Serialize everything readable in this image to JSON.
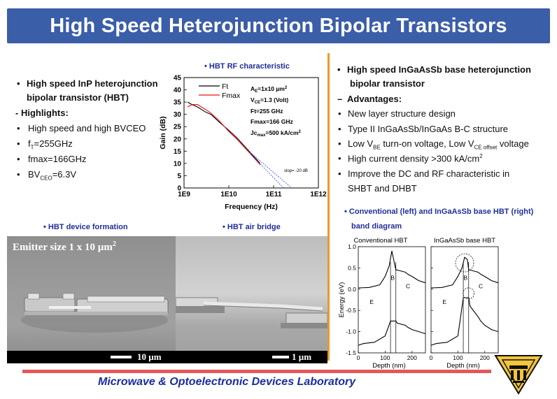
{
  "title": "High Speed Heterojunction Bipolar Transistors",
  "footer": "Microwave & Optoelectronic Devices Laboratory",
  "left_text": {
    "heading_line1": "High speed InP heterojunction",
    "heading_line2": "bipolar transistor (HBT)",
    "highlights_label": "- Highlights:",
    "items": [
      {
        "pre": "High speed and high BVCEO",
        "sub": "",
        "post": ""
      },
      {
        "pre": "f",
        "sub": "T",
        "post": "=255GHz"
      },
      {
        "pre": "fmax=166GHz",
        "sub": "",
        "post": ""
      },
      {
        "pre": "BV",
        "sub": "CEO",
        "post": "=6.3V"
      }
    ]
  },
  "right_text": {
    "heading_line1": "High speed InGaAsSb base heterojunction",
    "heading_line2": "bipolar transistor",
    "advantages_label": "Advantages:",
    "item1": "New layer structure design",
    "item2": "Type II InGaAsSb/InGaAs B-C structure",
    "item3_a": "Low V",
    "item3_sub1": "BE",
    "item3_b": " turn-on voltage, Low V",
    "item3_sub2": "CE offset",
    "item3_c": " voltage",
    "item4_a": "High current density >300 kA/cm",
    "item4_sup": "2",
    "item5_line1": "Improve the DC and RF characteristic in",
    "item5_line2": "SHBT and DHBT"
  },
  "captions": {
    "rf": "• HBT RF characteristic",
    "device": "• HBT device formation",
    "airbridge": "• HBT air bridge",
    "band_line1": "• Conventional (left) and InGaAsSb base HBT (right)",
    "band_line2": "band diagram"
  },
  "sem": {
    "emitter_label": "Emitter size 1 x 10 µm",
    "emitter_sup": "2",
    "scale1": "10 µm",
    "scale2": "1 µm"
  },
  "rf_chart": {
    "chart_data": {
      "type": "line",
      "xscale": "log",
      "xlim": [
        1000000000.0,
        1000000000000.0
      ],
      "ylim": [
        0,
        45
      ],
      "xlabel": "Frequency (Hz)",
      "ylabel": "Gain (dB)",
      "x_ticks": [
        "1E9",
        "1E10",
        "1E11",
        "1E12"
      ],
      "y_ticks": [
        "0",
        "5",
        "10",
        "15",
        "20",
        "25",
        "30",
        "35",
        "40",
        "45"
      ],
      "legend": [
        "Ft",
        "Fmax"
      ],
      "series": [
        {
          "name": "Ft",
          "color": "#000000",
          "x": [
            1200000000.0,
            1500000000.0,
            2000000000.0,
            3000000000.0,
            4000000000.0,
            6000000000.0,
            8000000000.0,
            10000000000.0,
            15000000000.0,
            20000000000.0,
            30000000000.0,
            40000000000.0,
            50000000000.0
          ],
          "y": [
            35,
            34,
            33,
            31,
            30,
            27,
            25,
            23.5,
            20.5,
            18,
            14.5,
            12,
            10
          ]
        },
        {
          "name": "Fmax",
          "color": "#ee1111",
          "x": [
            1200000000.0,
            1500000000.0,
            2000000000.0,
            3000000000.0,
            4000000000.0,
            6000000000.0,
            8000000000.0,
            10000000000.0,
            15000000000.0,
            20000000000.0,
            30000000000.0,
            40000000000.0,
            50000000000.0
          ],
          "y": [
            33,
            34,
            34,
            32,
            30.5,
            27.5,
            25,
            23,
            20,
            17.5,
            14,
            11.5,
            9.5
          ]
        },
        {
          "name": "Ft extrapolation",
          "color": "#3344dd",
          "x": [
            30000000000.0,
            255000000000.0
          ],
          "y": [
            14.5,
            0
          ]
        },
        {
          "name": "Fmax extrapolation",
          "color": "#3344dd",
          "x": [
            30000000000.0,
            166000000000.0
          ],
          "y": [
            14,
            0
          ]
        }
      ],
      "annotations": {
        "ae_a": "A",
        "ae_sub": "E",
        "ae_b": "=1x10 µm",
        "ae_sup": "2",
        "vce_a": "V",
        "vce_sub": "CE",
        "vce_b": "=1.3 (Volt)",
        "ft": "Ft=255 GHz",
        "fmax": "Fmax=166 GHz",
        "jc_a": "Jc",
        "jc_sub": "max",
        "jc_b": "=500 kA/cm",
        "jc_sup": "2",
        "slope": "slop= -20 dB"
      }
    }
  },
  "band_chart": {
    "chart_data": [
      {
        "type": "line",
        "title": "Conventional HBT",
        "xlabel": "Depth (nm)",
        "ylabel": "Energy (eV)",
        "xlim": [
          0,
          250
        ],
        "ylim": [
          -1.5,
          1.0
        ],
        "x_ticks": [
          "0",
          "100",
          "200"
        ],
        "y_ticks": [
          "1.0",
          "0.5",
          "0.0",
          "-0.5",
          "-1.0",
          "-1.5"
        ],
        "region_labels": [
          "E",
          "B",
          "C"
        ],
        "series": [
          {
            "name": "Ec",
            "x": [
              0,
              40,
              80,
              100,
              115,
              125,
              135,
              140,
              145,
              175,
              185,
              200,
              225,
              250
            ],
            "y": [
              0.03,
              0.04,
              0.1,
              0.3,
              0.55,
              0.9,
              0.6,
              0.45,
              0.45,
              0.4,
              0.35,
              0.3,
              0.2,
              0.15
            ]
          },
          {
            "name": "Ev",
            "x": [
              0,
              20,
              60,
              100,
              120,
              140,
              145,
              175,
              185,
              200,
              225,
              250
            ],
            "y": [
              -1.32,
              -1.28,
              -1.25,
              -1.1,
              -0.75,
              -0.75,
              -0.8,
              -0.85,
              -0.9,
              -0.95,
              -1.0,
              -1.05
            ]
          }
        ]
      },
      {
        "type": "line",
        "title": "InGaAsSb base HBT",
        "xlabel": "Depth (nm)",
        "ylabel": "",
        "xlim": [
          0,
          250
        ],
        "ylim": [
          -1.5,
          1.0
        ],
        "x_ticks": [
          "0",
          "100",
          "200"
        ],
        "y_ticks": [],
        "region_labels": [
          "E",
          "B",
          "C"
        ],
        "series": [
          {
            "name": "Ec",
            "x": [
              0,
              40,
              80,
              100,
              115,
              125,
              135,
              140,
              145,
              175,
              185,
              200,
              225,
              250
            ],
            "y": [
              0.03,
              0.04,
              0.1,
              0.3,
              0.5,
              0.75,
              0.7,
              0.45,
              0.45,
              0.4,
              0.35,
              0.3,
              0.2,
              0.15
            ]
          },
          {
            "name": "Ev",
            "x": [
              0,
              20,
              60,
              100,
              120,
              140,
              145,
              175,
              185,
              200,
              225,
              250
            ],
            "y": [
              -1.32,
              -1.28,
              -1.25,
              -1.1,
              -0.2,
              -0.2,
              -0.4,
              -0.65,
              -0.75,
              -0.85,
              -0.95,
              -1.0
            ]
          }
        ]
      }
    ]
  }
}
